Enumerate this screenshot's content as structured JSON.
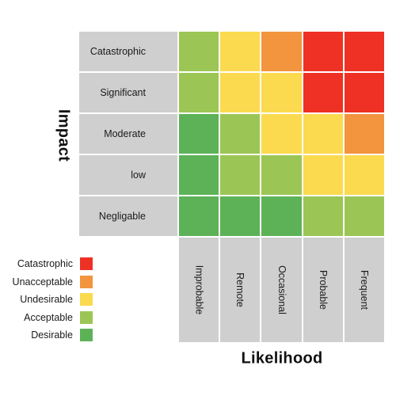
{
  "impact_label": "Impact",
  "likelihood_label": "Likelihood",
  "impact_levels": [
    "Catastrophic",
    "Significant",
    "Moderate",
    "low",
    "Negligable"
  ],
  "likelihood_levels": [
    "Improbable",
    "Remote",
    "Occasional",
    "Probable",
    "Frequent"
  ],
  "colors": {
    "catastrophic": "#ee3124",
    "unacceptable": "#f2953e",
    "undesirable": "#fcda4f",
    "acceptable": "#9bc655",
    "desirable": "#5db258"
  },
  "legend": [
    {
      "label": "Catastrophic",
      "key": "catastrophic"
    },
    {
      "label": "Unacceptable",
      "key": "unacceptable"
    },
    {
      "label": "Undesirable",
      "key": "undesirable"
    },
    {
      "label": "Acceptable",
      "key": "acceptable"
    },
    {
      "label": "Desirable",
      "key": "desirable"
    }
  ],
  "matrix": [
    [
      "acceptable",
      "undesirable",
      "unacceptable",
      "catastrophic",
      "catastrophic"
    ],
    [
      "acceptable",
      "undesirable",
      "undesirable",
      "catastrophic",
      "catastrophic"
    ],
    [
      "desirable",
      "acceptable",
      "undesirable",
      "undesirable",
      "unacceptable"
    ],
    [
      "desirable",
      "acceptable",
      "acceptable",
      "undesirable",
      "undesirable"
    ],
    [
      "desirable",
      "desirable",
      "desirable",
      "acceptable",
      "acceptable"
    ]
  ]
}
